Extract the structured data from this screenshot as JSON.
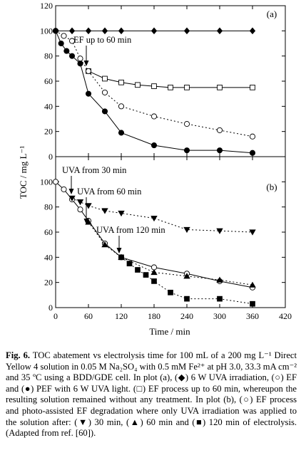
{
  "chart_data": [
    {
      "type": "scatter",
      "panel_label": "(a)",
      "xlim": [
        0,
        420
      ],
      "ylim": [
        0,
        120
      ],
      "xticks": [
        0,
        60,
        120,
        180,
        240,
        300,
        360,
        420
      ],
      "yticks": [
        0,
        20,
        40,
        60,
        80,
        100,
        120
      ],
      "ylabel": "TOC / mg L⁻¹",
      "xlabel": "",
      "legend": "none",
      "series": [
        {
          "marker": "diamond-filled",
          "line": "solid",
          "x": [
            0,
            30,
            60,
            90,
            120,
            180,
            240,
            300,
            360
          ],
          "y": [
            100,
            100,
            100,
            100,
            100,
            100,
            100,
            100,
            100
          ]
        },
        {
          "marker": "square-open",
          "line": "solid",
          "x": [
            60,
            90,
            120,
            150,
            180,
            210,
            240,
            300,
            360
          ],
          "y": [
            68,
            62,
            59,
            57,
            56,
            55,
            55,
            55,
            55
          ]
        },
        {
          "marker": "circle-open",
          "line": "dotted",
          "x": [
            0,
            15,
            30,
            45,
            60,
            90,
            120,
            180,
            240,
            300,
            360
          ],
          "y": [
            100,
            96,
            92,
            78,
            68,
            51,
            40,
            32,
            26,
            21,
            16
          ]
        },
        {
          "marker": "circle-filled",
          "line": "solid",
          "x": [
            0,
            10,
            20,
            30,
            45,
            60,
            90,
            120,
            180,
            240,
            300,
            360
          ],
          "y": [
            100,
            90,
            84,
            80,
            74,
            50,
            36,
            19,
            9,
            5,
            5,
            3
          ]
        }
      ],
      "annotations": [
        {
          "text": "EF up to 60 min",
          "x": 60,
          "y": 68
        }
      ]
    },
    {
      "type": "scatter",
      "panel_label": "(b)",
      "xlim": [
        0,
        420
      ],
      "ylim": [
        0,
        120
      ],
      "xticks": [
        0,
        60,
        120,
        180,
        240,
        300,
        360,
        420
      ],
      "yticks": [
        0,
        20,
        40,
        60,
        80,
        100
      ],
      "xlabel": "Time / min",
      "ylabel": "TOC / mg L⁻¹",
      "legend": "none",
      "series": [
        {
          "marker": "circle-open",
          "line": "solid",
          "x": [
            0,
            15,
            30,
            45,
            60,
            90,
            120,
            180,
            240,
            300,
            360
          ],
          "y": [
            100,
            94,
            86,
            78,
            69,
            51,
            40,
            32,
            27,
            21,
            16
          ]
        },
        {
          "marker": "triangle-down-filled",
          "line": "dotted",
          "x": [
            30,
            45,
            60,
            90,
            120,
            180,
            240,
            300,
            360
          ],
          "y": [
            87,
            84,
            81,
            77,
            75,
            71,
            62,
            61,
            60
          ]
        },
        {
          "marker": "triangle-up-filled",
          "line": "dotted",
          "x": [
            60,
            90,
            120,
            180,
            240,
            300,
            360
          ],
          "y": [
            68,
            50,
            40,
            28,
            25,
            22,
            18
          ]
        },
        {
          "marker": "square-filled",
          "line": "dotted",
          "x": [
            120,
            135,
            150,
            165,
            180,
            210,
            240,
            300,
            360
          ],
          "y": [
            40,
            35,
            30,
            26,
            21,
            12,
            7,
            7,
            3
          ]
        }
      ],
      "annotations": [
        {
          "text": "UVA from 30 min",
          "x": 30,
          "y": 88
        },
        {
          "text": "UVA from 60 min",
          "x": 60,
          "y": 69
        },
        {
          "text": "UVA from 120 min",
          "x": 120,
          "y": 41
        }
      ]
    }
  ],
  "caption": {
    "bold": "Fig. 6.",
    "text": " TOC abatement vs electrolysis time for 100 mL of a 200 mg L⁻¹ Direct Yellow 4 solution in 0.05 M Na₂SO₄ with 0.5 mM Fe²⁺ at pH 3.0, 33.3 mA cm⁻² and 35 ºC using a BDD/GDE cell. In plot (a), (◆) 6 W UVA irradiation, (○) EF and (●) PEF with 6 W UVA light. (□) EF process up to 60 min, whereupon the resulting solution remained without any treatment. In plot (b), (○) EF process and photo-assisted EF degradation where only UVA irradiation was applied to the solution after: (▼) 30 min, (▲) 60 min and (■) 120 min of electrolysis. (Adapted from ref. [60])."
  }
}
